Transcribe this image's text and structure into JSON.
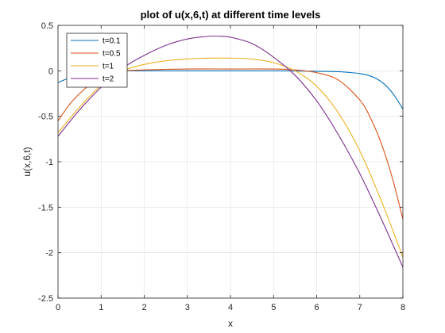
{
  "chart_data": {
    "type": "line",
    "title": "plot of u(x,6,t) at different time levels",
    "xlabel": "x",
    "ylabel": "u(x,6,t)",
    "xlim": [
      0,
      8
    ],
    "ylim": [
      -2.5,
      0.5
    ],
    "xticks": [
      0,
      1,
      2,
      3,
      4,
      5,
      6,
      7,
      8
    ],
    "yticks": [
      0.5,
      0,
      -0.5,
      -1,
      -1.5,
      -2,
      -2.5
    ],
    "xtick_labels": [
      "0",
      "1",
      "2",
      "3",
      "4",
      "5",
      "6",
      "7",
      "8"
    ],
    "ytick_labels": [
      "0.5",
      "0",
      "-0.5",
      "-1",
      "-1.5",
      "-2",
      "-2.5"
    ],
    "grid": true,
    "legend_position": "top-left",
    "series": [
      {
        "name": "t=0.1",
        "color": "#0072BD",
        "x": [
          0,
          0.25,
          0.5,
          0.75,
          1,
          1.5,
          2,
          3,
          4,
          5,
          6,
          6.5,
          6.8,
          7,
          7.2,
          7.4,
          7.6,
          7.8,
          8
        ],
        "y": [
          -0.13,
          -0.08,
          -0.05,
          -0.02,
          -0.01,
          0,
          0,
          0,
          0,
          0,
          -0.005,
          -0.01,
          -0.02,
          -0.03,
          -0.05,
          -0.09,
          -0.16,
          -0.27,
          -0.42
        ]
      },
      {
        "name": "t=0.5",
        "color": "#D95319",
        "x": [
          0,
          0.25,
          0.5,
          0.75,
          1,
          1.25,
          1.5,
          2,
          3,
          4,
          5,
          5.5,
          6,
          6.5,
          7,
          7.25,
          7.5,
          7.75,
          8
        ],
        "y": [
          -0.55,
          -0.38,
          -0.25,
          -0.15,
          -0.08,
          -0.03,
          0,
          0.01,
          0.02,
          0.02,
          0.02,
          0.01,
          -0.02,
          -0.1,
          -0.32,
          -0.52,
          -0.8,
          -1.17,
          -1.63
        ]
      },
      {
        "name": "t=1",
        "color": "#EDB120",
        "x": [
          0,
          0.5,
          1,
          1.5,
          2,
          2.5,
          3,
          3.5,
          4,
          4.5,
          5,
          5.5,
          6,
          6.5,
          7,
          7.5,
          8
        ],
        "y": [
          -0.68,
          -0.4,
          -0.16,
          0,
          0.07,
          0.11,
          0.13,
          0.14,
          0.14,
          0.13,
          0.09,
          0,
          -0.17,
          -0.46,
          -0.88,
          -1.43,
          -2.05
        ]
      },
      {
        "name": "t=2",
        "color": "#7E2F8E",
        "x": [
          0,
          0.5,
          1,
          1.5,
          2,
          2.5,
          3,
          3.5,
          3.75,
          4,
          4.5,
          5,
          5.5,
          6,
          6.5,
          7,
          7.5,
          8
        ],
        "y": [
          -0.72,
          -0.43,
          -0.18,
          0.03,
          0.17,
          0.28,
          0.35,
          0.38,
          0.38,
          0.37,
          0.3,
          0.15,
          -0.05,
          -0.33,
          -0.7,
          -1.13,
          -1.63,
          -2.16
        ]
      }
    ]
  }
}
